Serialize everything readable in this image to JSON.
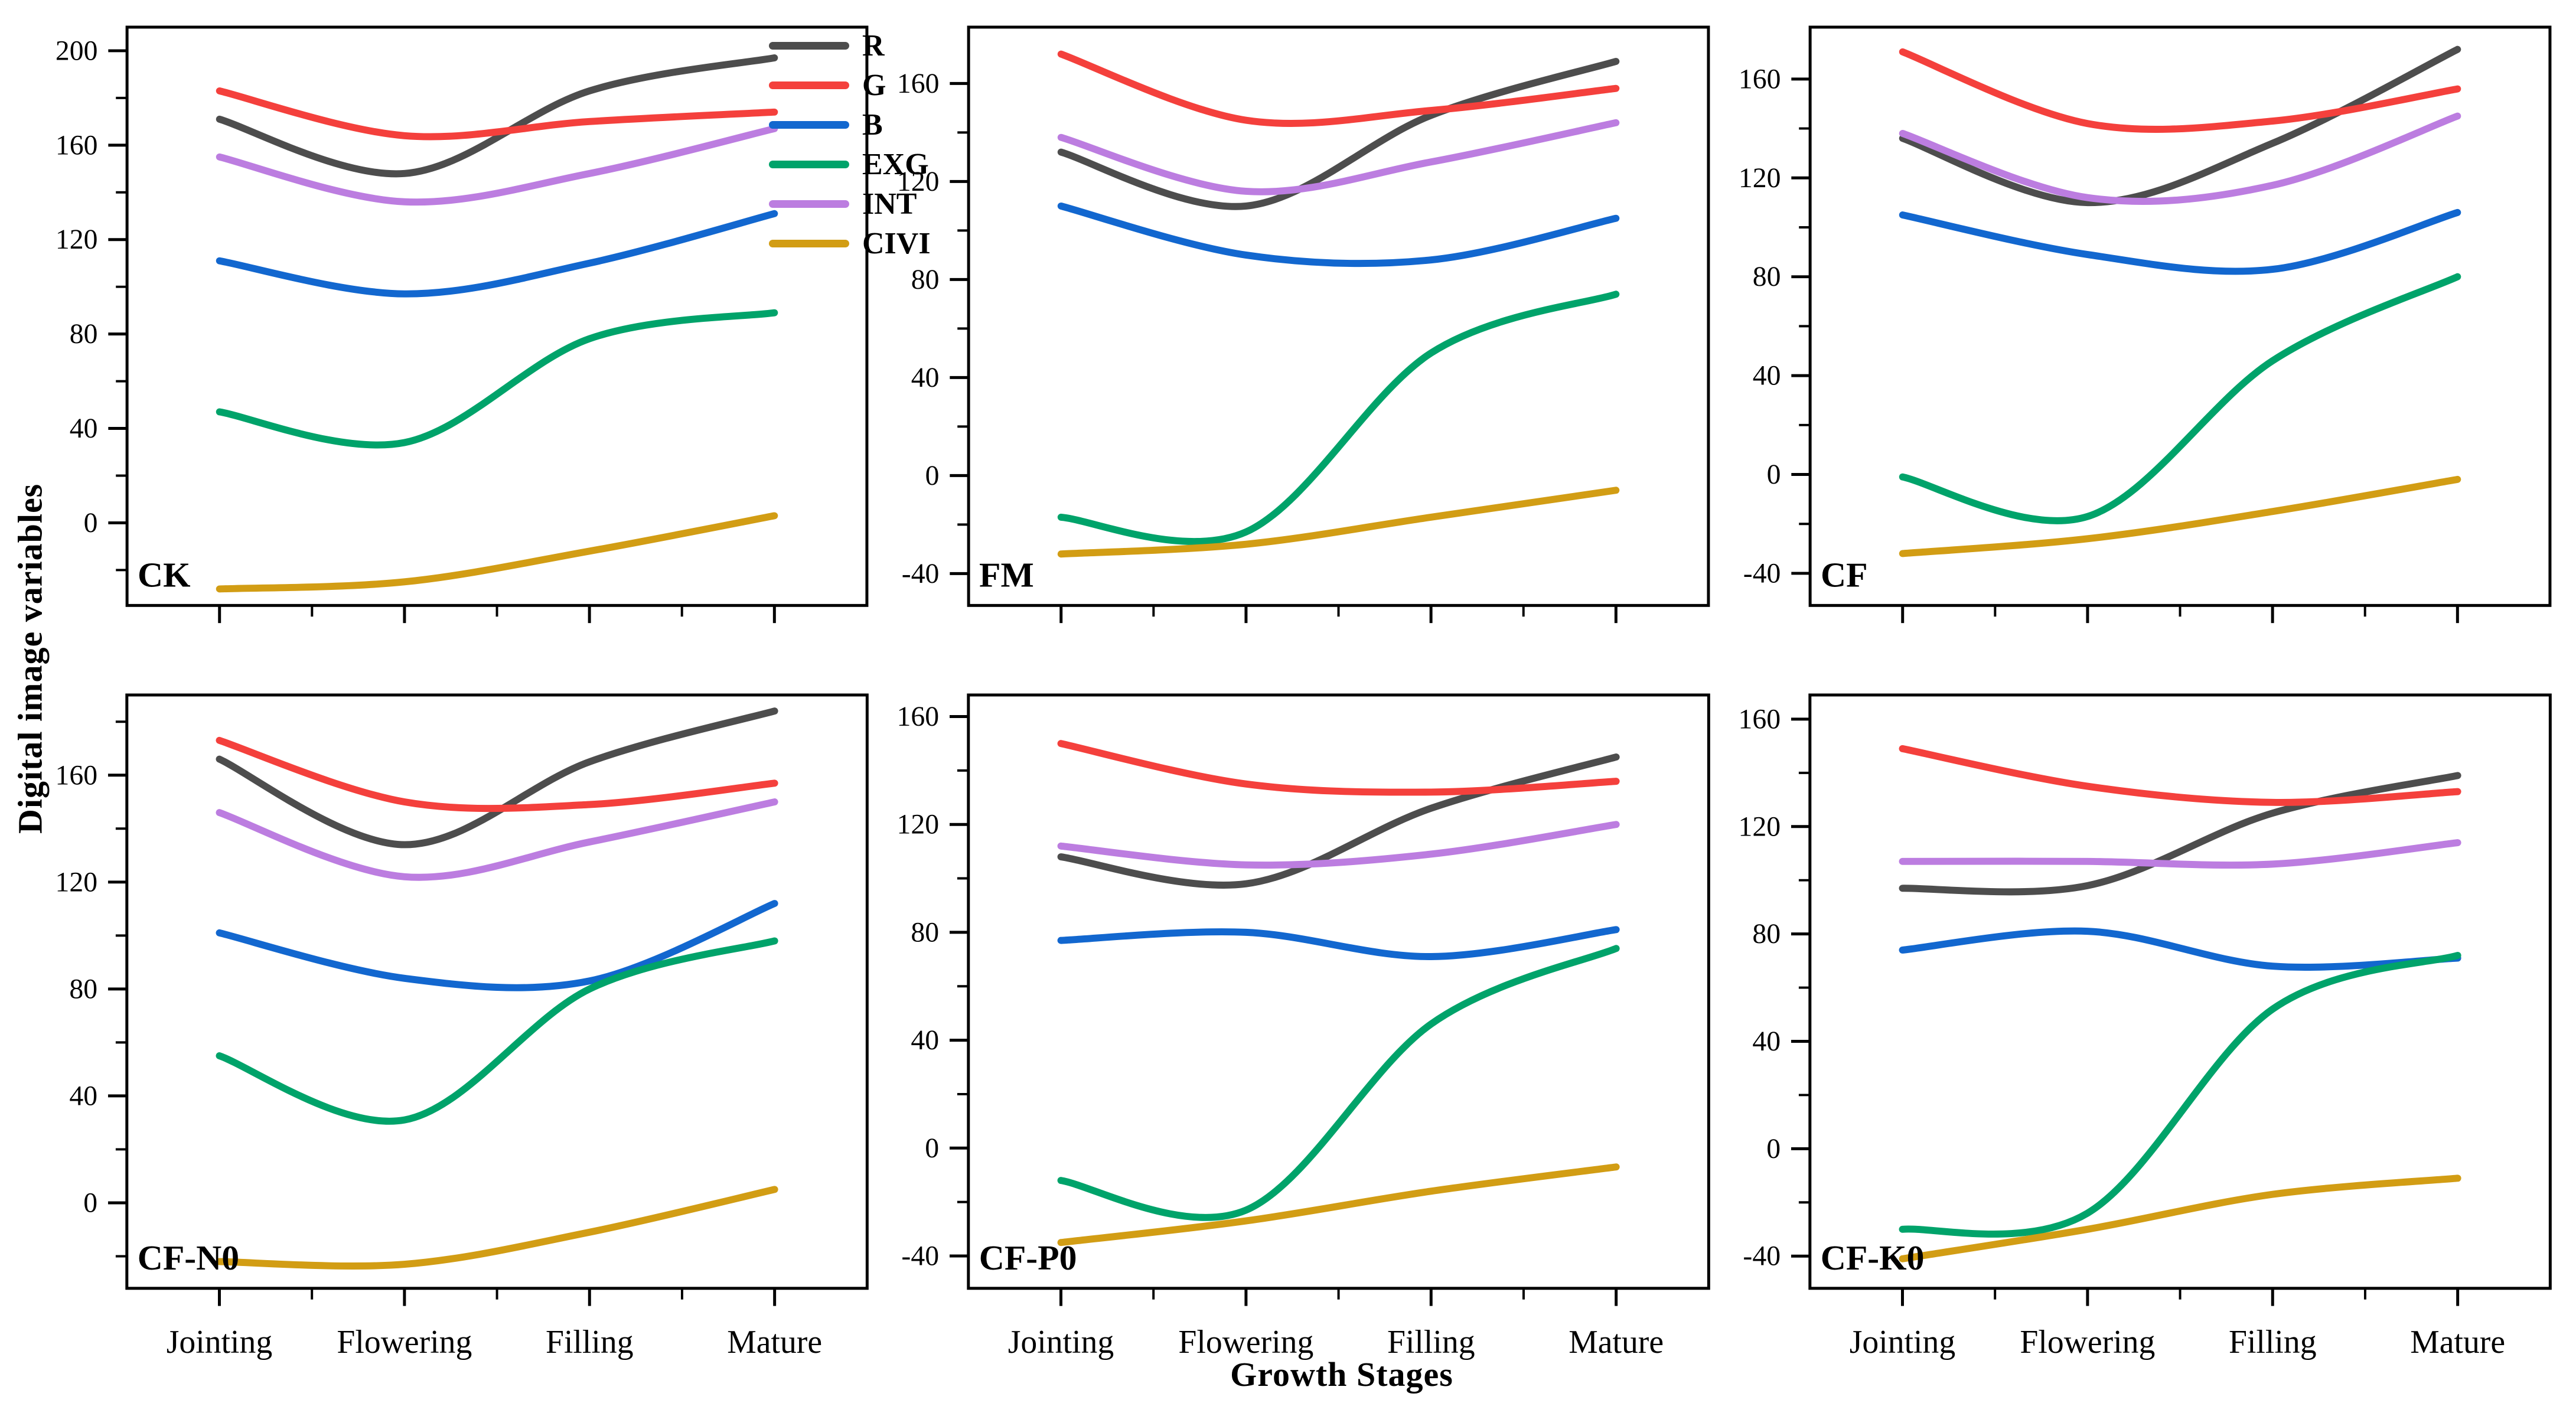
{
  "figure": {
    "y_axis_title": "Digital image variables",
    "x_axis_title": "Growth Stages",
    "categories": [
      "Jointing",
      "Flowering",
      "Filling",
      "Mature"
    ],
    "legend": [
      {
        "label": "R",
        "color": "#4d4d4d"
      },
      {
        "label": "G",
        "color": "#f4403c"
      },
      {
        "label": "B",
        "color": "#1267cf"
      },
      {
        "label": "EXG",
        "color": "#00a36a"
      },
      {
        "label": "INT",
        "color": "#bc7de0"
      },
      {
        "label": "CIVI",
        "color": "#d29d14"
      }
    ],
    "axis_color": "#000000",
    "background_color": "#ffffff"
  },
  "chart_data": [
    {
      "type": "line",
      "title": "CK",
      "row": 0,
      "ylim": [
        -35,
        210
      ],
      "yticks_major": [
        0,
        40,
        80,
        120,
        160,
        200
      ],
      "ytick_minor_step": 20,
      "grid": false,
      "legend_position": "top-right-of-first-panel",
      "categories": [
        "Jointing",
        "Flowering",
        "Filling",
        "Mature"
      ],
      "series": [
        {
          "name": "R",
          "color": "#4d4d4d",
          "values": [
            171,
            148,
            183,
            197
          ]
        },
        {
          "name": "G",
          "color": "#f4403c",
          "values": [
            183,
            164,
            170,
            174
          ]
        },
        {
          "name": "B",
          "color": "#1267cf",
          "values": [
            111,
            97,
            110,
            131
          ]
        },
        {
          "name": "EXG",
          "color": "#00a36a",
          "values": [
            47,
            34,
            78,
            89
          ]
        },
        {
          "name": "INT",
          "color": "#bc7de0",
          "values": [
            155,
            136,
            148,
            167
          ]
        },
        {
          "name": "CIVI",
          "color": "#d29d14",
          "values": [
            -28,
            -25,
            -12,
            3
          ]
        }
      ]
    },
    {
      "type": "line",
      "title": "FM",
      "row": 0,
      "ylim": [
        -53,
        183
      ],
      "yticks_major": [
        -40,
        0,
        40,
        80,
        120,
        160
      ],
      "ytick_minor_step": 20,
      "grid": false,
      "categories": [
        "Jointing",
        "Flowering",
        "Filling",
        "Mature"
      ],
      "series": [
        {
          "name": "R",
          "color": "#4d4d4d",
          "values": [
            132,
            110,
            147,
            169
          ]
        },
        {
          "name": "G",
          "color": "#f4403c",
          "values": [
            172,
            145,
            149,
            158
          ]
        },
        {
          "name": "B",
          "color": "#1267cf",
          "values": [
            110,
            90,
            88,
            105
          ]
        },
        {
          "name": "EXG",
          "color": "#00a36a",
          "values": [
            -17,
            -23,
            50,
            74
          ]
        },
        {
          "name": "INT",
          "color": "#bc7de0",
          "values": [
            138,
            116,
            128,
            144
          ]
        },
        {
          "name": "CIVI",
          "color": "#d29d14",
          "values": [
            -32,
            -28,
            -17,
            -6
          ]
        }
      ]
    },
    {
      "type": "line",
      "title": "CF",
      "row": 0,
      "ylim": [
        -53,
        181
      ],
      "yticks_major": [
        -40,
        0,
        40,
        80,
        120,
        160
      ],
      "ytick_minor_step": 20,
      "grid": false,
      "categories": [
        "Jointing",
        "Flowering",
        "Filling",
        "Mature"
      ],
      "series": [
        {
          "name": "R",
          "color": "#4d4d4d",
          "values": [
            136,
            110,
            134,
            172
          ]
        },
        {
          "name": "G",
          "color": "#f4403c",
          "values": [
            171,
            142,
            143,
            156
          ]
        },
        {
          "name": "B",
          "color": "#1267cf",
          "values": [
            105,
            89,
            83,
            106
          ]
        },
        {
          "name": "EXG",
          "color": "#00a36a",
          "values": [
            -1,
            -17,
            46,
            80
          ]
        },
        {
          "name": "INT",
          "color": "#bc7de0",
          "values": [
            138,
            112,
            117,
            145
          ]
        },
        {
          "name": "CIVI",
          "color": "#d29d14",
          "values": [
            -32,
            -26,
            -15,
            -2
          ]
        }
      ]
    },
    {
      "type": "line",
      "title": "CF-N0",
      "row": 1,
      "ylim": [
        -32,
        190
      ],
      "yticks_major": [
        0,
        40,
        80,
        120,
        160
      ],
      "ytick_minor_step": 20,
      "grid": false,
      "categories": [
        "Jointing",
        "Flowering",
        "Filling",
        "Mature"
      ],
      "series": [
        {
          "name": "R",
          "color": "#4d4d4d",
          "values": [
            166,
            134,
            165,
            184
          ]
        },
        {
          "name": "G",
          "color": "#f4403c",
          "values": [
            173,
            150,
            149,
            157
          ]
        },
        {
          "name": "B",
          "color": "#1267cf",
          "values": [
            101,
            84,
            83,
            112
          ]
        },
        {
          "name": "EXG",
          "color": "#00a36a",
          "values": [
            55,
            31,
            80,
            98
          ]
        },
        {
          "name": "INT",
          "color": "#bc7de0",
          "values": [
            146,
            122,
            135,
            150
          ]
        },
        {
          "name": "CIVI",
          "color": "#d29d14",
          "values": [
            -22,
            -23,
            -11,
            5
          ]
        }
      ]
    },
    {
      "type": "line",
      "title": "CF-P0",
      "row": 1,
      "ylim": [
        -52,
        168
      ],
      "yticks_major": [
        -40,
        0,
        40,
        80,
        120,
        160
      ],
      "ytick_minor_step": 20,
      "grid": false,
      "categories": [
        "Jointing",
        "Flowering",
        "Filling",
        "Mature"
      ],
      "series": [
        {
          "name": "R",
          "color": "#4d4d4d",
          "values": [
            108,
            98,
            126,
            145
          ]
        },
        {
          "name": "G",
          "color": "#f4403c",
          "values": [
            150,
            135,
            132,
            136
          ]
        },
        {
          "name": "B",
          "color": "#1267cf",
          "values": [
            77,
            80,
            71,
            81
          ]
        },
        {
          "name": "EXG",
          "color": "#00a36a",
          "values": [
            -12,
            -23,
            46,
            74
          ]
        },
        {
          "name": "INT",
          "color": "#bc7de0",
          "values": [
            112,
            105,
            109,
            120
          ]
        },
        {
          "name": "CIVI",
          "color": "#d29d14",
          "values": [
            -35,
            -27,
            -16,
            -7
          ]
        }
      ]
    },
    {
      "type": "line",
      "title": "CF-K0",
      "row": 1,
      "ylim": [
        -52,
        169
      ],
      "yticks_major": [
        -40,
        0,
        40,
        80,
        120,
        160
      ],
      "ytick_minor_step": 20,
      "grid": false,
      "categories": [
        "Jointing",
        "Flowering",
        "Filling",
        "Mature"
      ],
      "series": [
        {
          "name": "R",
          "color": "#4d4d4d",
          "values": [
            97,
            98,
            125,
            139
          ]
        },
        {
          "name": "G",
          "color": "#f4403c",
          "values": [
            149,
            135,
            129,
            133
          ]
        },
        {
          "name": "B",
          "color": "#1267cf",
          "values": [
            74,
            81,
            68,
            71
          ]
        },
        {
          "name": "EXG",
          "color": "#00a36a",
          "values": [
            -30,
            -24,
            52,
            72
          ]
        },
        {
          "name": "INT",
          "color": "#bc7de0",
          "values": [
            107,
            107,
            106,
            114
          ]
        },
        {
          "name": "CIVI",
          "color": "#d29d14",
          "values": [
            -41,
            -30,
            -17,
            -11
          ]
        }
      ]
    }
  ]
}
